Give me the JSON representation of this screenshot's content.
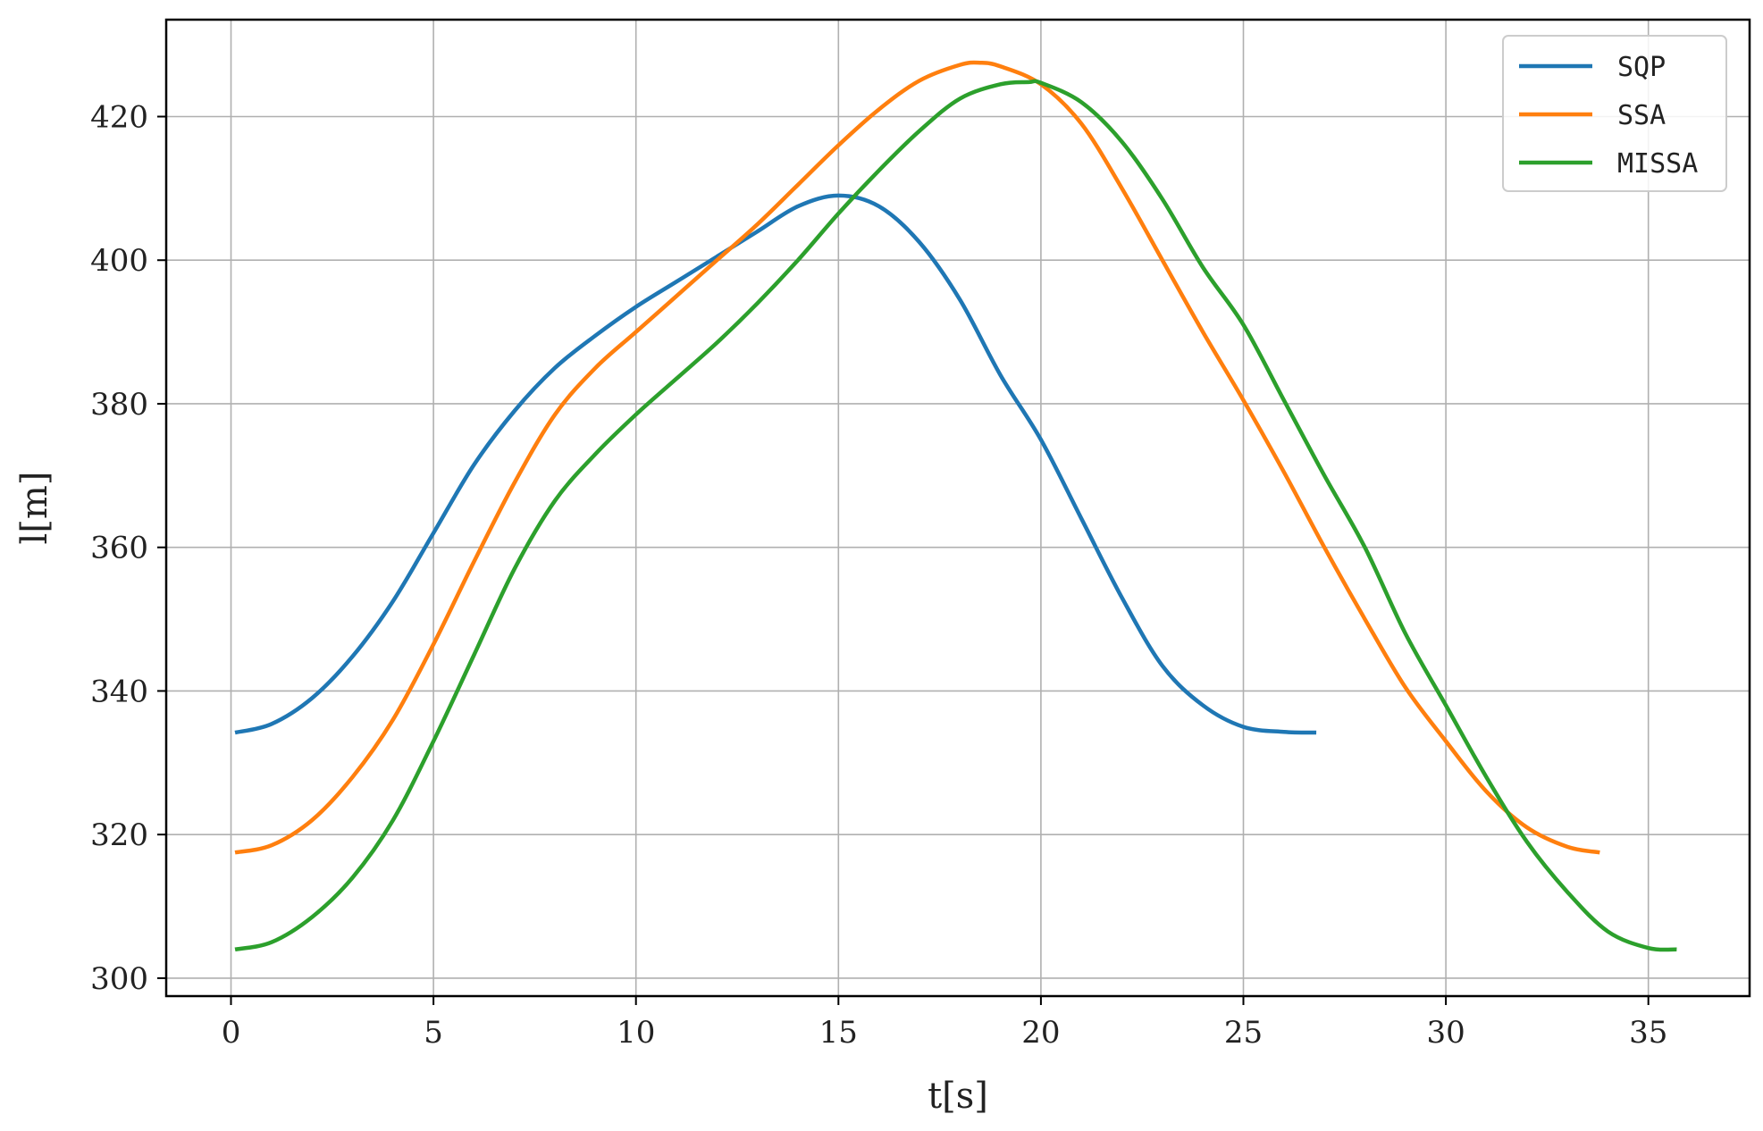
{
  "chart_data": {
    "type": "line",
    "title": "",
    "xlabel": "t[s]",
    "ylabel": "l[m]",
    "xlim": [
      -1.6,
      37.5
    ],
    "ylim": [
      297.5,
      433.5
    ],
    "xticks": [
      0,
      5,
      10,
      15,
      20,
      25,
      30,
      35
    ],
    "yticks": [
      300,
      320,
      340,
      360,
      380,
      400,
      420
    ],
    "xtick_labels": [
      "0",
      "5",
      "10",
      "15",
      "20",
      "25",
      "30",
      "35"
    ],
    "ytick_labels": [
      "300",
      "320",
      "340",
      "360",
      "380",
      "400",
      "420"
    ],
    "grid": true,
    "legend_position": "top-right",
    "series": [
      {
        "name": "SQP",
        "color": "#1f77b4",
        "points": [
          [
            0.1,
            334.2
          ],
          [
            1,
            335.4
          ],
          [
            2,
            339
          ],
          [
            3,
            344.8
          ],
          [
            4,
            352.5
          ],
          [
            5,
            362
          ],
          [
            6,
            371.5
          ],
          [
            7,
            379
          ],
          [
            8,
            385
          ],
          [
            9,
            389.5
          ],
          [
            10,
            393.5
          ],
          [
            11,
            397
          ],
          [
            12,
            400.5
          ],
          [
            13,
            404
          ],
          [
            14,
            407.5
          ],
          [
            15,
            409
          ],
          [
            16,
            407.5
          ],
          [
            17,
            402.5
          ],
          [
            18,
            394.5
          ],
          [
            19,
            384
          ],
          [
            20,
            375
          ],
          [
            21,
            364
          ],
          [
            22,
            353
          ],
          [
            23,
            343.5
          ],
          [
            24,
            338
          ],
          [
            25,
            335
          ],
          [
            26,
            334.3
          ],
          [
            26.8,
            334.2
          ]
        ]
      },
      {
        "name": "SSA",
        "color": "#ff7f0e",
        "points": [
          [
            0.1,
            317.5
          ],
          [
            1,
            318.5
          ],
          [
            2,
            322
          ],
          [
            3,
            328
          ],
          [
            4,
            336
          ],
          [
            5,
            346.5
          ],
          [
            6,
            358
          ],
          [
            7,
            369
          ],
          [
            8,
            378.5
          ],
          [
            9,
            385
          ],
          [
            10,
            390
          ],
          [
            11,
            395
          ],
          [
            12,
            400
          ],
          [
            13,
            405
          ],
          [
            14,
            410.5
          ],
          [
            15,
            416
          ],
          [
            16,
            421
          ],
          [
            17,
            425
          ],
          [
            18,
            427.2
          ],
          [
            18.5,
            427.5
          ],
          [
            19,
            427
          ],
          [
            20,
            424.5
          ],
          [
            21,
            419
          ],
          [
            22,
            410
          ],
          [
            23,
            400
          ],
          [
            24,
            390
          ],
          [
            25,
            380.5
          ],
          [
            26,
            370.5
          ],
          [
            27,
            360
          ],
          [
            28,
            350
          ],
          [
            29,
            340.5
          ],
          [
            30,
            333
          ],
          [
            31,
            326
          ],
          [
            32,
            321
          ],
          [
            33,
            318.3
          ],
          [
            33.8,
            317.5
          ]
        ]
      },
      {
        "name": "MISSA",
        "color": "#2ca02c",
        "points": [
          [
            0.1,
            304
          ],
          [
            1,
            305
          ],
          [
            2,
            308.5
          ],
          [
            3,
            314
          ],
          [
            4,
            322
          ],
          [
            5,
            333
          ],
          [
            6,
            345
          ],
          [
            7,
            357
          ],
          [
            8,
            366.5
          ],
          [
            9,
            373
          ],
          [
            10,
            378.5
          ],
          [
            11,
            383.5
          ],
          [
            12,
            388.5
          ],
          [
            13,
            394
          ],
          [
            14,
            400
          ],
          [
            15,
            406.5
          ],
          [
            16,
            412.5
          ],
          [
            17,
            418
          ],
          [
            18,
            422.5
          ],
          [
            19,
            424.5
          ],
          [
            19.7,
            424.8
          ],
          [
            20,
            424.7
          ],
          [
            21,
            422
          ],
          [
            22,
            416.5
          ],
          [
            23,
            408.5
          ],
          [
            24,
            399
          ],
          [
            25,
            391
          ],
          [
            26,
            380.5
          ],
          [
            27,
            370
          ],
          [
            28,
            360
          ],
          [
            29,
            348
          ],
          [
            30,
            338
          ],
          [
            31,
            328
          ],
          [
            32,
            319
          ],
          [
            33,
            312
          ],
          [
            34,
            306.5
          ],
          [
            35,
            304.2
          ],
          [
            35.7,
            304
          ]
        ]
      }
    ]
  }
}
